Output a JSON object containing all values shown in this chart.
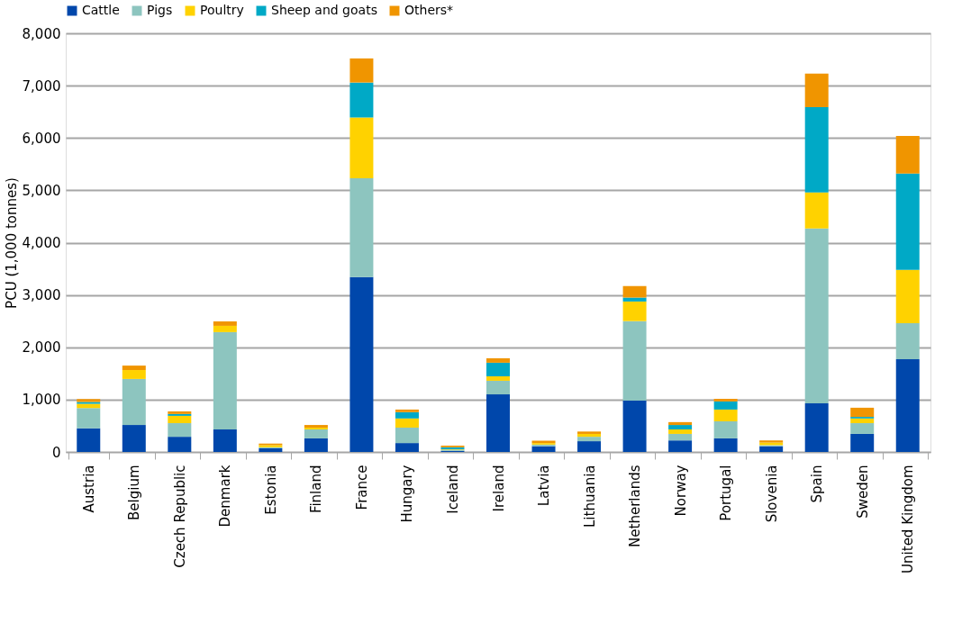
{
  "chart_data": {
    "type": "bar",
    "stacked": true,
    "ylabel": "PCU (1,000 tonnes)",
    "categories": [
      "Austria",
      "Belgium",
      "Czech Republic",
      "Denmark",
      "Estonia",
      "Finland",
      "France",
      "Hungary",
      "Iceland",
      "Ireland",
      "Latvia",
      "Lithuania",
      "Netherlands",
      "Norway",
      "Portugal",
      "Slovenia",
      "Spain",
      "Sweden",
      "United Kingdom"
    ],
    "series": [
      {
        "name": "Cattle",
        "color": "#0047ab",
        "values": [
          450,
          515,
          290,
          430,
          70,
          260,
          3340,
          170,
          20,
          1100,
          110,
          205,
          980,
          220,
          260,
          110,
          930,
          345,
          1770
        ]
      },
      {
        "name": "Pigs",
        "color": "#8dc5bf",
        "values": [
          390,
          880,
          260,
          1860,
          20,
          170,
          1890,
          295,
          20,
          260,
          30,
          85,
          1520,
          125,
          325,
          20,
          3340,
          205,
          690
        ]
      },
      {
        "name": "Poultry",
        "color": "#ffd200",
        "values": [
          80,
          170,
          140,
          120,
          40,
          35,
          1160,
          175,
          10,
          85,
          30,
          55,
          375,
          85,
          225,
          50,
          690,
          90,
          1020
        ]
      },
      {
        "name": "Sheep and goats",
        "color": "#00a9c6",
        "values": [
          35,
          0,
          35,
          0,
          null,
          0,
          670,
          120,
          40,
          260,
          null,
          0,
          75,
          85,
          155,
          null,
          1630,
          30,
          1840
        ]
      },
      {
        "name": "Others*",
        "color": "#f09500",
        "values": [
          55,
          85,
          50,
          85,
          30,
          50,
          460,
          50,
          30,
          85,
          45,
          45,
          220,
          55,
          50,
          40,
          640,
          175,
          720
        ]
      }
    ],
    "ylim": [
      0,
      8000
    ],
    "yticks": [
      {
        "value": 0,
        "label": "0"
      },
      {
        "value": 1000,
        "label": "1,000"
      },
      {
        "value": 2000,
        "label": "2,000"
      },
      {
        "value": 3000,
        "label": "3,000"
      },
      {
        "value": 4000,
        "label": "4,000"
      },
      {
        "value": 5000,
        "label": "5,000"
      },
      {
        "value": 6000,
        "label": "6,000"
      },
      {
        "value": 7000,
        "label": "7,000"
      },
      {
        "value": 8000,
        "label": "8,000"
      }
    ],
    "grid": "y",
    "legend": "top"
  }
}
